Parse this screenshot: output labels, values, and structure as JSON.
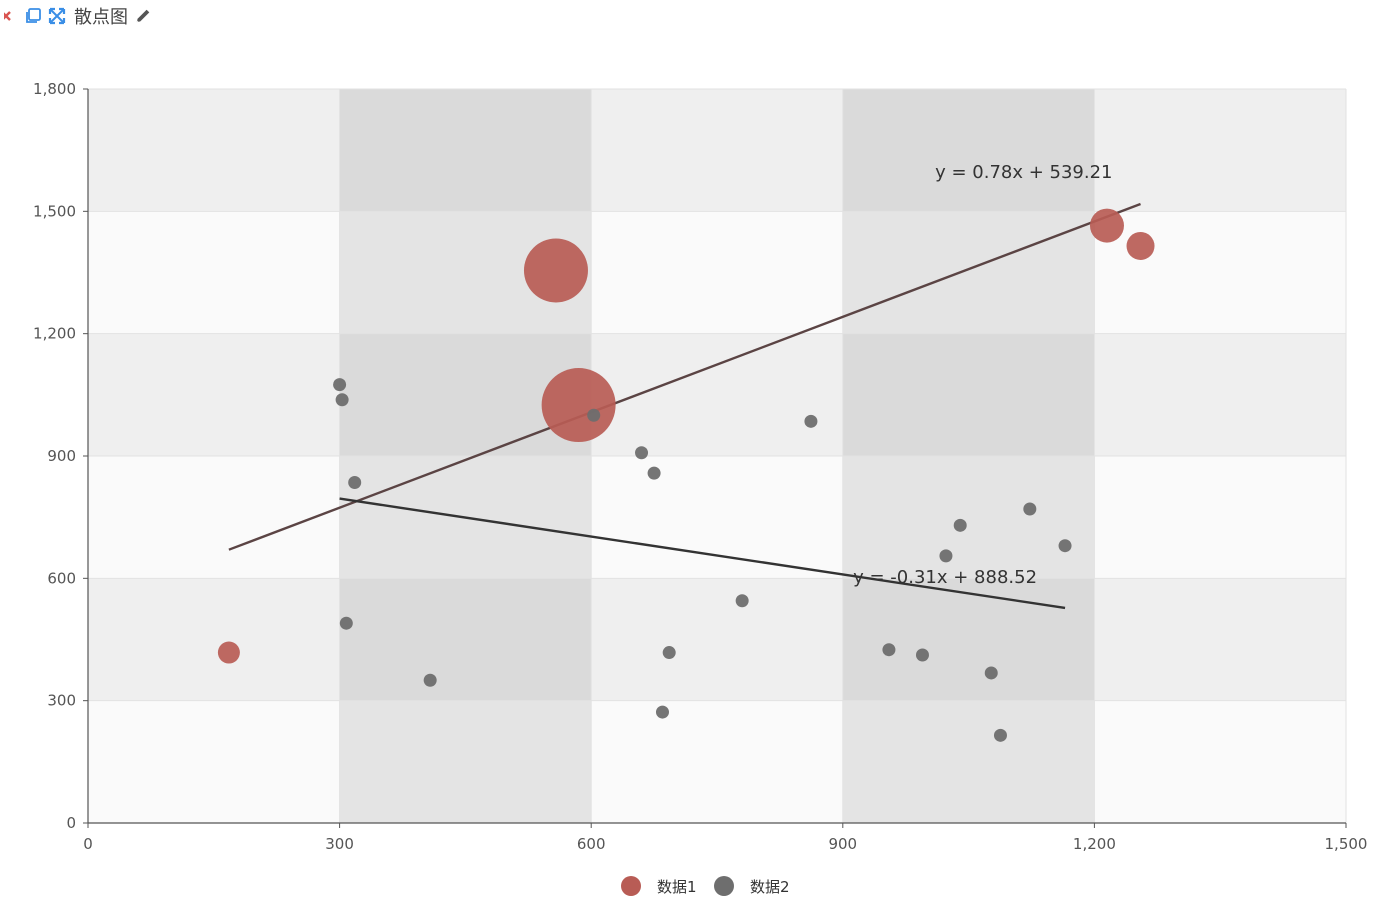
{
  "toolbar": {
    "title": "散点图",
    "icons": [
      "close-icon",
      "copy-icon",
      "expand-icon",
      "pencil-icon"
    ],
    "colors": {
      "close": "#d9534f",
      "copy": "#3a8ee6",
      "expand": "#3a8ee6",
      "pencil": "#555555"
    }
  },
  "chart_data": {
    "type": "scatter",
    "title": "",
    "xlabel": "",
    "ylabel": "",
    "xlim": [
      0,
      1500
    ],
    "ylim": [
      0,
      1800
    ],
    "x_ticks": [
      0,
      300,
      600,
      900,
      1200,
      1500
    ],
    "y_ticks": [
      0,
      300,
      600,
      900,
      1200,
      1500,
      1800
    ],
    "x_tick_labels": [
      "0",
      "300",
      "600",
      "900",
      "1,200",
      "1,500"
    ],
    "y_tick_labels": [
      "0",
      "300",
      "600",
      "900",
      "1,200",
      "1,500",
      "1,800"
    ],
    "grid": true,
    "legend_position": "bottom-center",
    "series": [
      {
        "name": "数据1",
        "color": "#b85c55",
        "points": [
          {
            "x": 168,
            "y": 418,
            "size": 11
          },
          {
            "x": 558,
            "y": 1355,
            "size": 32
          },
          {
            "x": 585,
            "y": 1025,
            "size": 37
          },
          {
            "x": 1215,
            "y": 1465,
            "size": 17
          },
          {
            "x": 1255,
            "y": 1415,
            "size": 14
          }
        ],
        "trendline": {
          "label": "y = 0.78x + 539.21",
          "x_range": [
            168,
            1255
          ],
          "slope": 0.78,
          "intercept": 539.21
        }
      },
      {
        "name": "数据2",
        "color": "#6e6e6e",
        "points": [
          {
            "x": 300,
            "y": 1075
          },
          {
            "x": 303,
            "y": 1038
          },
          {
            "x": 318,
            "y": 835
          },
          {
            "x": 308,
            "y": 490
          },
          {
            "x": 408,
            "y": 350
          },
          {
            "x": 603,
            "y": 1000
          },
          {
            "x": 660,
            "y": 908
          },
          {
            "x": 675,
            "y": 858
          },
          {
            "x": 693,
            "y": 418
          },
          {
            "x": 685,
            "y": 272
          },
          {
            "x": 780,
            "y": 545
          },
          {
            "x": 862,
            "y": 985
          },
          {
            "x": 955,
            "y": 425
          },
          {
            "x": 995,
            "y": 412
          },
          {
            "x": 1023,
            "y": 655
          },
          {
            "x": 1040,
            "y": 730
          },
          {
            "x": 1077,
            "y": 368
          },
          {
            "x": 1088,
            "y": 215
          },
          {
            "x": 1123,
            "y": 770
          },
          {
            "x": 1165,
            "y": 680
          }
        ],
        "trendline": {
          "label": "y = -0.31x + 888.52",
          "x_range": [
            300,
            1165
          ],
          "slope": -0.31,
          "intercept": 888.52
        }
      }
    ]
  }
}
